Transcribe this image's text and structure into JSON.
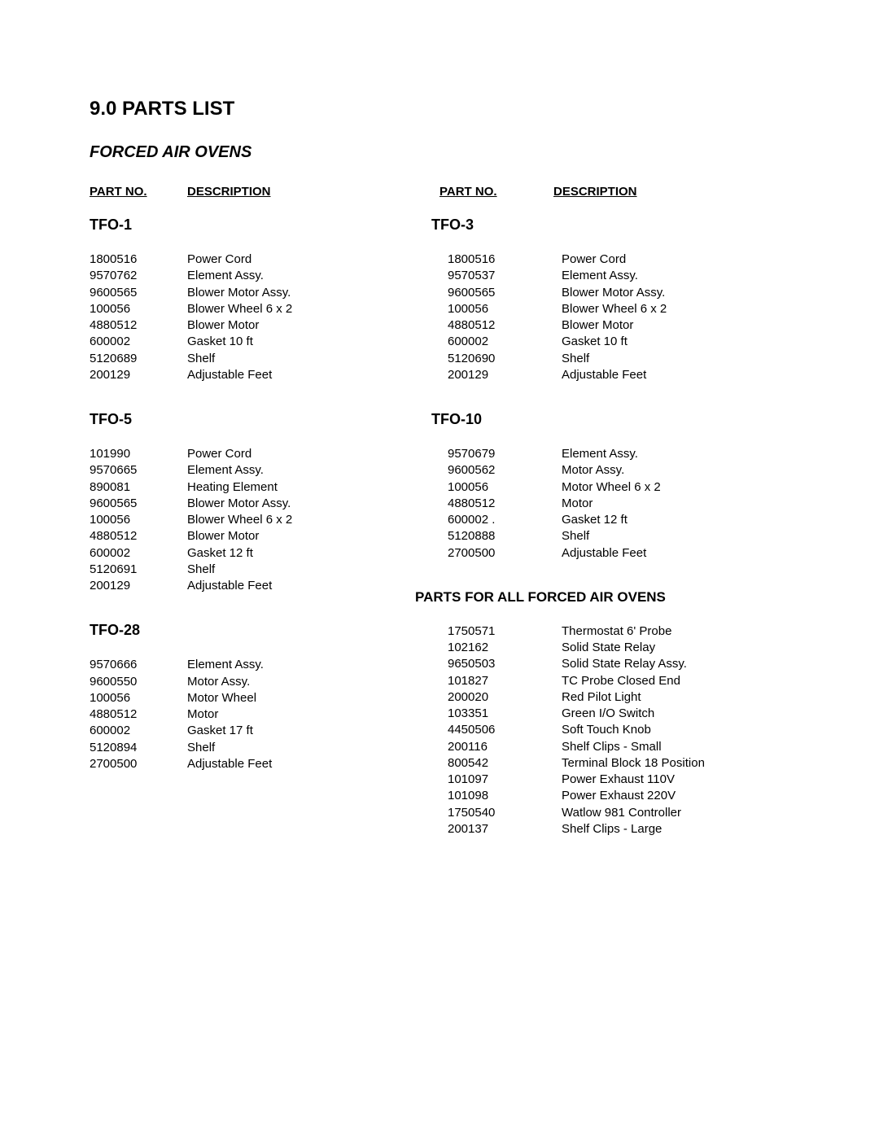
{
  "heading": "9.0  PARTS LIST",
  "subheading": "FORCED AIR OVENS",
  "headers": {
    "part_no": "PART NO.",
    "description": "DESCRIPTION"
  },
  "left_sections": [
    {
      "title": "TFO-1",
      "parts": [
        {
          "no": "1800516",
          "desc": "Power Cord"
        },
        {
          "no": "9570762",
          "desc": "Element Assy."
        },
        {
          "no": "9600565",
          "desc": "Blower Motor Assy."
        },
        {
          "no": "100056",
          "desc": "Blower Wheel 6 x 2"
        },
        {
          "no": "4880512",
          "desc": "Blower Motor"
        },
        {
          "no": "600002",
          "desc": "Gasket 10 ft"
        },
        {
          "no": "5120689",
          "desc": "Shelf"
        },
        {
          "no": "200129",
          "desc": "Adjustable Feet"
        }
      ]
    },
    {
      "title": "TFO-5",
      "parts": [
        {
          "no": "101990",
          "desc": "Power Cord"
        },
        {
          "no": "9570665",
          "desc": "Element Assy."
        },
        {
          "no": "890081",
          "desc": "Heating Element"
        },
        {
          "no": "9600565",
          "desc": "Blower Motor Assy."
        },
        {
          "no": "100056",
          "desc": "Blower Wheel 6 x 2"
        },
        {
          "no": "4880512",
          "desc": "Blower Motor"
        },
        {
          "no": "600002",
          "desc": "Gasket 12 ft"
        },
        {
          "no": "5120691",
          "desc": "Shelf"
        },
        {
          "no": "200129",
          "desc": "Adjustable Feet"
        }
      ]
    },
    {
      "title": "TFO-28",
      "parts": [
        {
          "no": "9570666",
          "desc": "Element Assy."
        },
        {
          "no": "9600550",
          "desc": "Motor Assy."
        },
        {
          "no": "100056",
          "desc": "Motor Wheel"
        },
        {
          "no": "4880512",
          "desc": "Motor"
        },
        {
          "no": "600002",
          "desc": "Gasket 17 ft"
        },
        {
          "no": "5120894",
          "desc": "Shelf"
        },
        {
          "no": "2700500",
          "desc": "Adjustable Feet"
        }
      ]
    }
  ],
  "right_sections": [
    {
      "title": "TFO-3",
      "parts": [
        {
          "no": "1800516",
          "desc": "Power Cord"
        },
        {
          "no": "9570537",
          "desc": "Element Assy."
        },
        {
          "no": "9600565",
          "desc": "Blower Motor Assy."
        },
        {
          "no": "100056",
          "desc": "Blower Wheel 6 x 2"
        },
        {
          "no": "4880512",
          "desc": "Blower Motor"
        },
        {
          "no": "600002",
          "desc": "Gasket 10 ft"
        },
        {
          "no": "5120690",
          "desc": "Shelf"
        },
        {
          "no": "200129",
          "desc": "Adjustable Feet"
        }
      ]
    },
    {
      "title": "TFO-10",
      "parts": [
        {
          "no": "9570679",
          "desc": "Element Assy."
        },
        {
          "no": "9600562",
          "desc": "Motor Assy."
        },
        {
          "no": "100056",
          "desc": "Motor Wheel 6 x 2"
        },
        {
          "no": "4880512",
          "desc": "Motor"
        },
        {
          "no": "600002 .",
          "desc": "Gasket 12 ft"
        },
        {
          "no": "5120888",
          "desc": "Shelf"
        },
        {
          "no": "2700500",
          "desc": "Adjustable Feet"
        }
      ]
    }
  ],
  "all_ovens": {
    "title": "PARTS FOR ALL FORCED AIR OVENS",
    "parts": [
      {
        "no": "1750571",
        "desc": "Thermostat 6' Probe"
      },
      {
        "no": "102162",
        "desc": "Solid State Relay"
      },
      {
        "no": "9650503",
        "desc": "Solid State Relay Assy."
      },
      {
        "no": "101827",
        "desc": "TC Probe Closed End"
      },
      {
        "no": "200020",
        "desc": "Red Pilot Light"
      },
      {
        "no": "103351",
        "desc": "Green I/O Switch"
      },
      {
        "no": "4450506",
        "desc": "Soft Touch Knob"
      },
      {
        "no": "200116",
        "desc": "Shelf Clips - Small"
      },
      {
        "no": "800542",
        "desc": "Terminal Block 18 Position"
      },
      {
        "no": "101097",
        "desc": "Power Exhaust 110V"
      },
      {
        "no": "101098",
        "desc": "Power Exhaust 220V"
      },
      {
        "no": "1750540",
        "desc": "Watlow 981 Controller"
      },
      {
        "no": "200137",
        "desc": "Shelf Clips - Large"
      }
    ]
  }
}
